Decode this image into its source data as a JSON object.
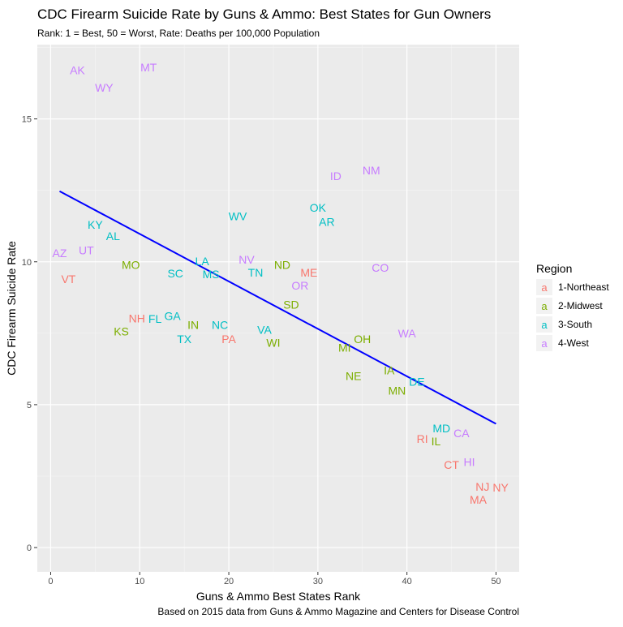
{
  "chart_data": {
    "type": "scatter",
    "title": "CDC Firearm Suicide Rate by Guns & Ammo: Best States for Gun Owners",
    "subtitle": "Rank: 1 = Best, 50 = Worst, Rate: Deaths per 100,000 Population",
    "xlabel": "Guns & Ammo Best States Rank",
    "ylabel": "CDC Firearm Suicide Rate",
    "caption": "Based on 2015 data from Guns & Ammo Magazine and Centers for Disease Control",
    "xlim": [
      -1.5,
      52.6
    ],
    "ylim": [
      -0.85,
      17.6
    ],
    "xticks": [
      0,
      10,
      20,
      30,
      40,
      50
    ],
    "yticks": [
      0,
      5,
      10,
      15
    ],
    "grid": true,
    "legend": {
      "title": "Region",
      "placement": "right",
      "key_glyph": "a",
      "entries": [
        {
          "name": "1-Northeast",
          "color": "#F8766D"
        },
        {
          "name": "2-Midwest",
          "color": "#7CAE00"
        },
        {
          "name": "3-South",
          "color": "#00BFC4"
        },
        {
          "name": "4-West",
          "color": "#C77CFF"
        }
      ]
    },
    "trend_line": {
      "color": "#0000FF",
      "points": [
        [
          1,
          12.47
        ],
        [
          50,
          4.33
        ]
      ]
    },
    "points": [
      {
        "label": "AZ",
        "x": 1,
        "y": 10.3,
        "region": "4-West"
      },
      {
        "label": "VT",
        "x": 2,
        "y": 9.4,
        "region": "1-Northeast"
      },
      {
        "label": "AK",
        "x": 3,
        "y": 16.7,
        "region": "4-West"
      },
      {
        "label": "UT",
        "x": 4,
        "y": 10.4,
        "region": "4-West"
      },
      {
        "label": "KY",
        "x": 5,
        "y": 11.3,
        "region": "3-South"
      },
      {
        "label": "WY",
        "x": 6,
        "y": 16.1,
        "region": "4-West"
      },
      {
        "label": "AL",
        "x": 7,
        "y": 10.9,
        "region": "3-South"
      },
      {
        "label": "KS",
        "x": 8,
        "y": 7.6,
        "region": "2-Midwest"
      },
      {
        "label": "MO",
        "x": 9,
        "y": 9.9,
        "region": "2-Midwest"
      },
      {
        "label": "NH",
        "x": 10,
        "y": 8.0,
        "region": "1-Northeast"
      },
      {
        "label": "MT",
        "x": 11,
        "y": 16.8,
        "region": "4-West"
      },
      {
        "label": "FL",
        "x": 12,
        "y": 8.0,
        "region": "3-South"
      },
      {
        "label": "GA",
        "x": 13,
        "y": 8.1,
        "region": "3-South"
      },
      {
        "label": "SC",
        "x": 14,
        "y": 9.6,
        "region": "3-South"
      },
      {
        "label": "TX",
        "x": 15,
        "y": 7.3,
        "region": "3-South"
      },
      {
        "label": "IN",
        "x": 16,
        "y": 7.8,
        "region": "2-Midwest"
      },
      {
        "label": "LA",
        "x": 17,
        "y": 9.9,
        "region": "3-South"
      },
      {
        "label": "MS",
        "x": 18,
        "y": 9.7,
        "region": "3-South"
      },
      {
        "label": "NC",
        "x": 19,
        "y": 7.8,
        "region": "3-South"
      },
      {
        "label": "PA",
        "x": 20,
        "y": 7.3,
        "region": "1-Northeast"
      },
      {
        "label": "WV",
        "x": 21,
        "y": 11.6,
        "region": "3-South"
      },
      {
        "label": "NV",
        "x": 22,
        "y": 10.0,
        "region": "4-West"
      },
      {
        "label": "TN",
        "x": 23,
        "y": 9.7,
        "region": "3-South"
      },
      {
        "label": "VA",
        "x": 24,
        "y": 7.5,
        "region": "3-South"
      },
      {
        "label": "WI",
        "x": 25,
        "y": 7.3,
        "region": "2-Midwest"
      },
      {
        "label": "ND",
        "x": 26,
        "y": 9.9,
        "region": "2-Midwest"
      },
      {
        "label": "SD",
        "x": 27,
        "y": 8.5,
        "region": "2-Midwest"
      },
      {
        "label": "OR",
        "x": 28,
        "y": 9.3,
        "region": "4-West"
      },
      {
        "label": "ME",
        "x": 29,
        "y": 9.5,
        "region": "1-Northeast"
      },
      {
        "label": "OK",
        "x": 30,
        "y": 11.9,
        "region": "3-South"
      },
      {
        "label": "AR",
        "x": 31,
        "y": 11.4,
        "region": "3-South"
      },
      {
        "label": "ID",
        "x": 32,
        "y": 13.0,
        "region": "4-West"
      },
      {
        "label": "MI",
        "x": 33,
        "y": 7.0,
        "region": "2-Midwest"
      },
      {
        "label": "NE",
        "x": 34,
        "y": 6.0,
        "region": "2-Midwest"
      },
      {
        "label": "OH",
        "x": 35,
        "y": 7.3,
        "region": "2-Midwest"
      },
      {
        "label": "NM",
        "x": 36,
        "y": 13.2,
        "region": "4-West"
      },
      {
        "label": "CO",
        "x": 37,
        "y": 9.8,
        "region": "4-West"
      },
      {
        "label": "IA",
        "x": 38,
        "y": 6.2,
        "region": "2-Midwest"
      },
      {
        "label": "MN",
        "x": 39,
        "y": 5.5,
        "region": "2-Midwest"
      },
      {
        "label": "WA",
        "x": 40,
        "y": 7.5,
        "region": "4-West"
      },
      {
        "label": "DE",
        "x": 41,
        "y": 5.8,
        "region": "3-South"
      },
      {
        "label": "RI",
        "x": 42,
        "y": 3.8,
        "region": "1-Northeast"
      },
      {
        "label": "IL",
        "x": 43,
        "y": 3.8,
        "region": "2-Midwest"
      },
      {
        "label": "MD",
        "x": 44,
        "y": 4.1,
        "region": "3-South"
      },
      {
        "label": "CT",
        "x": 45,
        "y": 2.9,
        "region": "1-Northeast"
      },
      {
        "label": "CA",
        "x": 46,
        "y": 4.0,
        "region": "4-West"
      },
      {
        "label": "HI",
        "x": 47,
        "y": 3.0,
        "region": "4-West"
      },
      {
        "label": "MA",
        "x": 48,
        "y": 1.7,
        "region": "1-Northeast"
      },
      {
        "label": "NJ",
        "x": 49,
        "y": 2.1,
        "region": "1-Northeast"
      },
      {
        "label": "NY",
        "x": 50,
        "y": 2.1,
        "region": "1-Northeast"
      }
    ]
  }
}
